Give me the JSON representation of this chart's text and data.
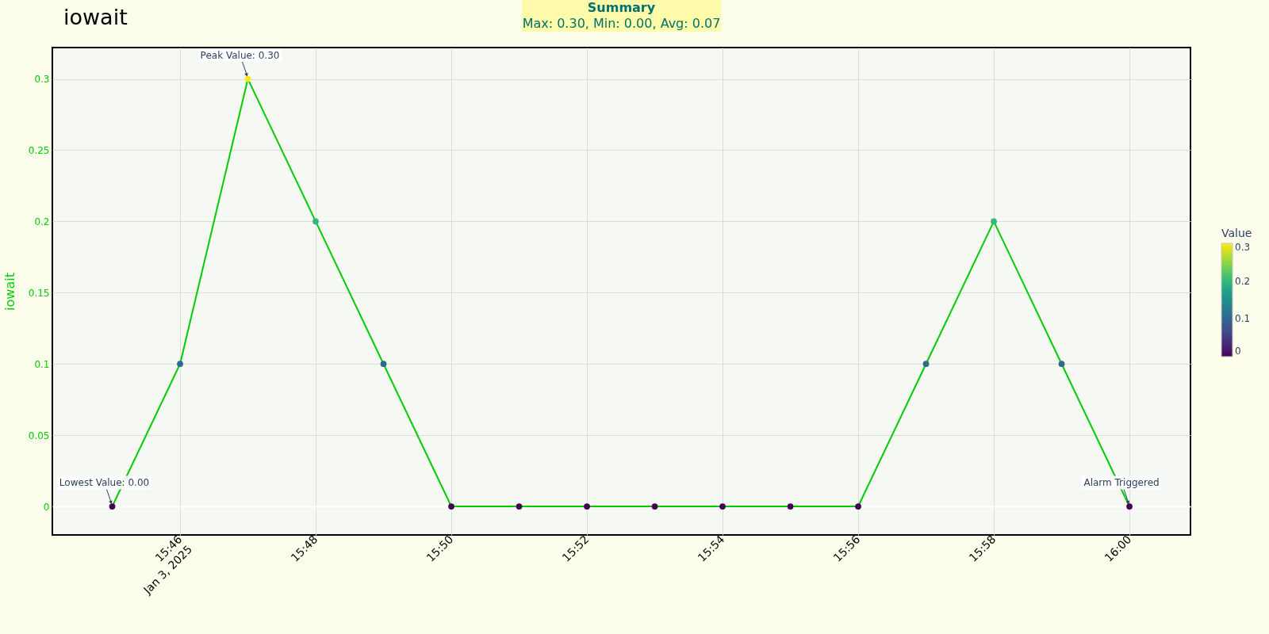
{
  "chart_data": {
    "type": "line",
    "title": "iowait",
    "ylabel": "iowait",
    "clabel": "Value",
    "x": [
      "2025-01-03T15:45",
      "2025-01-03T15:46",
      "2025-01-03T15:47",
      "2025-01-03T15:48",
      "2025-01-03T15:49",
      "2025-01-03T15:50",
      "2025-01-03T15:51",
      "2025-01-03T15:52",
      "2025-01-03T15:53",
      "2025-01-03T15:54",
      "2025-01-03T15:55",
      "2025-01-03T15:56",
      "2025-01-03T15:57",
      "2025-01-03T15:58",
      "2025-01-03T15:59",
      "2025-01-03T16:00"
    ],
    "series": [
      {
        "color": "#00cc00",
        "values": [
          0,
          0.1,
          0.3,
          0.2,
          0.1,
          0,
          0,
          0,
          0,
          0,
          0,
          0,
          0.1,
          0.2,
          0.1,
          0
        ]
      }
    ],
    "xlim": [
      "2025-01-03T15:44:07",
      "2025-01-03T16:00:54"
    ],
    "xticks": [
      {
        "value": "2025-01-03T15:46",
        "label": "15:46\nJan 3, 2025"
      },
      {
        "value": "2025-01-03T15:48",
        "label": "15:48"
      },
      {
        "value": "2025-01-03T15:50",
        "label": "15:50"
      },
      {
        "value": "2025-01-03T15:52",
        "label": "15:52"
      },
      {
        "value": "2025-01-03T15:54",
        "label": "15:54"
      },
      {
        "value": "2025-01-03T15:56",
        "label": "15:56"
      },
      {
        "value": "2025-01-03T15:58",
        "label": "15:58"
      },
      {
        "value": "2025-01-03T16:00",
        "label": "16:00"
      }
    ],
    "ylim": [
      -0.02,
      0.322
    ],
    "yticks": [
      0,
      0.05,
      0.1,
      0.15,
      0.2,
      0.25,
      0.3
    ],
    "clim": [
      0,
      0.3
    ],
    "cticks": [
      0,
      0.1,
      0.2,
      0.3
    ],
    "grid": true,
    "marker": "circle",
    "annotations": [
      {
        "text": "Peak Value: 0.30",
        "x": "2025-01-03T15:47",
        "y": 0.3
      },
      {
        "text": "Lowest Value: 0.00",
        "x": "2025-01-03T15:45",
        "y": 0
      },
      {
        "text": "Alarm Triggered",
        "x": "2025-01-03T16:00",
        "y": 0
      },
      "Summary",
      "Max: 0.30, Min: 0.00, Avg: 0.07"
    ]
  }
}
